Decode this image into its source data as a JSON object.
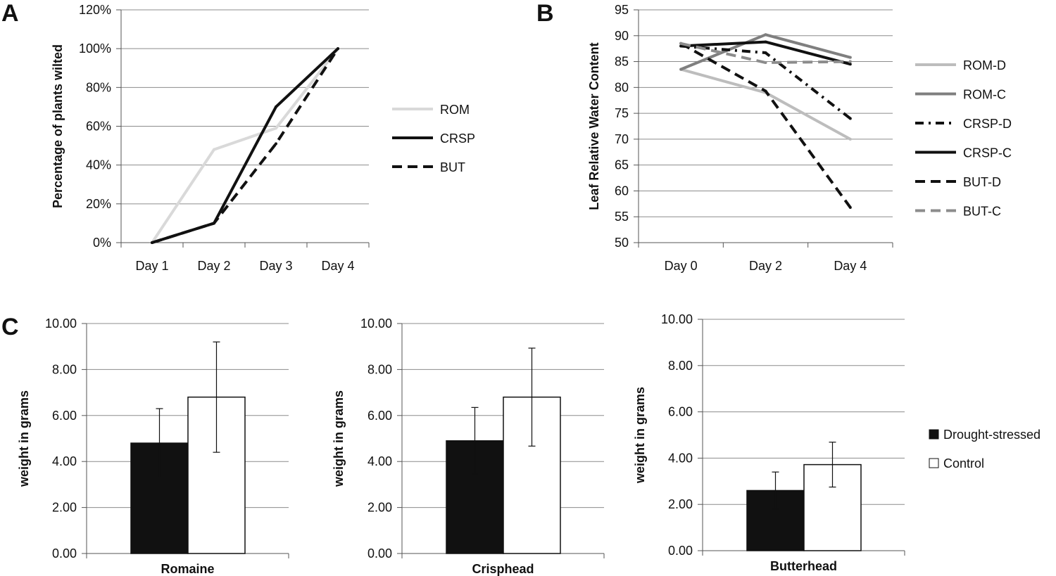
{
  "figure": {
    "background": "#ffffff",
    "grid_color": "#8c8c8c",
    "axis_color": "#555555"
  },
  "chart_data": [
    {
      "id": "A",
      "panel_label": "A",
      "type": "line",
      "ylabel": "Percentage of plants wilted",
      "xlabel": "",
      "categories": [
        "Day 1",
        "Day 2",
        "Day 3",
        "Day 4"
      ],
      "ylim": [
        0,
        120
      ],
      "yticks": [
        0,
        20,
        40,
        60,
        80,
        100,
        120
      ],
      "ytick_labels": [
        "0%",
        "20%",
        "40%",
        "60%",
        "80%",
        "100%",
        "120%"
      ],
      "grid": true,
      "legend_position": "right",
      "series": [
        {
          "name": "ROM",
          "values": [
            0,
            48,
            59,
            100
          ],
          "color": "#d9d9d9",
          "dash": "solid"
        },
        {
          "name": "CRSP",
          "values": [
            0,
            10,
            70,
            100
          ],
          "color": "#111111",
          "dash": "solid"
        },
        {
          "name": "BUT",
          "values": [
            0,
            10,
            51,
            100
          ],
          "color": "#111111",
          "dash": "dashed"
        }
      ]
    },
    {
      "id": "B",
      "panel_label": "B",
      "type": "line",
      "ylabel": "Leaf Relative Water Content",
      "xlabel": "",
      "categories": [
        "Day 0",
        "Day 2",
        "Day 4"
      ],
      "ylim": [
        50,
        95
      ],
      "yticks": [
        50,
        55,
        60,
        65,
        70,
        75,
        80,
        85,
        90,
        95
      ],
      "ytick_labels": [
        "50",
        "55",
        "60",
        "65",
        "70",
        "75",
        "80",
        "85",
        "90",
        "95"
      ],
      "grid": true,
      "legend_position": "right",
      "series": [
        {
          "name": "ROM-D",
          "values": [
            83.5,
            79,
            70
          ],
          "color": "#bdbdbd",
          "dash": "solid"
        },
        {
          "name": "ROM-C",
          "values": [
            83.5,
            90.2,
            85.8
          ],
          "color": "#7f7f7f",
          "dash": "solid"
        },
        {
          "name": "CRSP-D",
          "values": [
            88,
            86.7,
            74
          ],
          "color": "#111111",
          "dash": "dashdot"
        },
        {
          "name": "CRSP-C",
          "values": [
            88,
            88.8,
            84.5
          ],
          "color": "#111111",
          "dash": "solid"
        },
        {
          "name": "BUT-D",
          "values": [
            88.5,
            79.3,
            56.8
          ],
          "color": "#111111",
          "dash": "dashed"
        },
        {
          "name": "BUT-C",
          "values": [
            88.5,
            84.8,
            85
          ],
          "color": "#8c8c8c",
          "dash": "dashed"
        }
      ]
    },
    {
      "id": "C1",
      "panel_label": "C",
      "type": "bar",
      "ylabel": "weight in grams",
      "xlabel": "Romaine",
      "categories": [
        "Romaine"
      ],
      "ylim": [
        0,
        10
      ],
      "yticks": [
        0,
        2,
        4,
        6,
        8,
        10
      ],
      "ytick_labels": [
        "0.00",
        "2.00",
        "4.00",
        "6.00",
        "8.00",
        "10.00"
      ],
      "grid": true,
      "series": [
        {
          "name": "Drought-stressed",
          "values": [
            4.8
          ],
          "errors": [
            1.5
          ],
          "color": "#111111"
        },
        {
          "name": "Control",
          "values": [
            6.8
          ],
          "errors": [
            2.4
          ],
          "color": "#ffffff"
        }
      ]
    },
    {
      "id": "C2",
      "panel_label": "",
      "type": "bar",
      "ylabel": "weight in grams",
      "xlabel": "Crisphead",
      "categories": [
        "Crisphead"
      ],
      "ylim": [
        0,
        10
      ],
      "yticks": [
        0,
        2,
        4,
        6,
        8,
        10
      ],
      "ytick_labels": [
        "0.00",
        "2.00",
        "4.00",
        "6.00",
        "8.00",
        "10.00"
      ],
      "grid": true,
      "series": [
        {
          "name": "Drought-stressed",
          "values": [
            4.9
          ],
          "errors": [
            1.45
          ],
          "color": "#111111"
        },
        {
          "name": "Control",
          "values": [
            6.8
          ],
          "errors": [
            2.13
          ],
          "color": "#ffffff"
        }
      ]
    },
    {
      "id": "C3",
      "panel_label": "",
      "type": "bar",
      "ylabel": "weight in grams",
      "xlabel": "Butterhead",
      "categories": [
        "Butterhead"
      ],
      "ylim": [
        0,
        10
      ],
      "yticks": [
        0,
        2,
        4,
        6,
        8,
        10
      ],
      "ytick_labels": [
        "0.00",
        "2.00",
        "4.00",
        "6.00",
        "8.00",
        "10.00"
      ],
      "grid": true,
      "legend_position": "right",
      "series": [
        {
          "name": "Drought-stressed",
          "values": [
            2.6
          ],
          "errors": [
            0.8
          ],
          "color": "#111111"
        },
        {
          "name": "Control",
          "values": [
            3.72
          ],
          "errors": [
            0.97
          ],
          "color": "#ffffff"
        }
      ]
    }
  ]
}
